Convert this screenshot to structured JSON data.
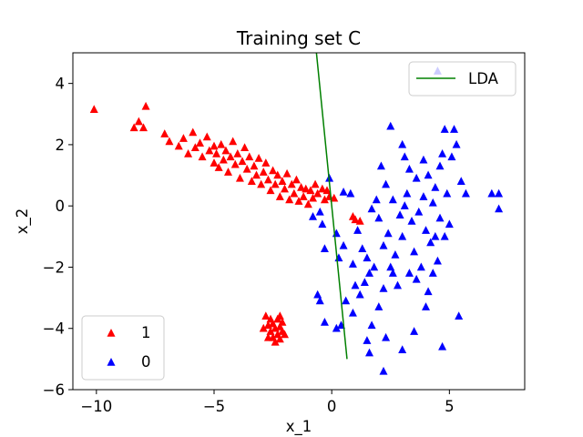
{
  "chart_data": {
    "type": "scatter",
    "title": "Training set C",
    "xlabel": "x_1",
    "ylabel": "x_2",
    "xlim": [
      -11,
      8.2
    ],
    "ylim": [
      -6,
      5
    ],
    "xticks": [
      -10,
      -5,
      0,
      5
    ],
    "yticks": [
      -6,
      -4,
      -2,
      0,
      2,
      4
    ],
    "grid": false,
    "colors": {
      "class1": "#ff0000",
      "class0": "#0000ff",
      "lda": "#008000"
    },
    "lda_line": {
      "name": "LDA",
      "x": [
        -0.65,
        0.65
      ],
      "y": [
        5.0,
        -5.0
      ],
      "legend": "upper-right"
    },
    "legend_markers": {
      "location": "lower-left",
      "entries": [
        "1",
        "0"
      ]
    },
    "series": [
      {
        "name": "1",
        "color": "#ff0000",
        "points": [
          [
            -10.1,
            3.15
          ],
          [
            -7.9,
            3.25
          ],
          [
            -8.2,
            2.75
          ],
          [
            -8.4,
            2.55
          ],
          [
            -8.0,
            2.55
          ],
          [
            -7.1,
            2.35
          ],
          [
            -6.9,
            2.1
          ],
          [
            -6.5,
            1.95
          ],
          [
            -6.3,
            2.2
          ],
          [
            -6.1,
            1.7
          ],
          [
            -5.9,
            2.4
          ],
          [
            -5.8,
            1.9
          ],
          [
            -5.6,
            2.05
          ],
          [
            -5.5,
            1.6
          ],
          [
            -5.3,
            2.25
          ],
          [
            -5.2,
            1.8
          ],
          [
            -5.0,
            1.4
          ],
          [
            -5.0,
            1.95
          ],
          [
            -4.9,
            1.7
          ],
          [
            -4.8,
            1.25
          ],
          [
            -4.7,
            2.0
          ],
          [
            -4.6,
            1.5
          ],
          [
            -4.5,
            1.8
          ],
          [
            -4.4,
            1.1
          ],
          [
            -4.3,
            1.6
          ],
          [
            -4.2,
            2.1
          ],
          [
            -4.1,
            1.35
          ],
          [
            -4.0,
            1.7
          ],
          [
            -3.9,
            0.9
          ],
          [
            -3.8,
            1.45
          ],
          [
            -3.7,
            1.9
          ],
          [
            -3.6,
            1.2
          ],
          [
            -3.5,
            1.6
          ],
          [
            -3.4,
            0.8
          ],
          [
            -3.3,
            1.3
          ],
          [
            -3.2,
            1.0
          ],
          [
            -3.1,
            1.55
          ],
          [
            -3.0,
            0.7
          ],
          [
            -2.9,
            1.1
          ],
          [
            -2.8,
            1.4
          ],
          [
            -2.7,
            0.85
          ],
          [
            -2.6,
            0.5
          ],
          [
            -2.5,
            1.15
          ],
          [
            -2.4,
            0.7
          ],
          [
            -2.3,
            1.0
          ],
          [
            -2.2,
            0.3
          ],
          [
            -2.1,
            0.8
          ],
          [
            -2.0,
            0.55
          ],
          [
            -1.9,
            1.05
          ],
          [
            -1.8,
            0.2
          ],
          [
            -1.7,
            0.7
          ],
          [
            -1.6,
            0.4
          ],
          [
            -1.5,
            0.85
          ],
          [
            -1.4,
            0.15
          ],
          [
            -1.3,
            0.6
          ],
          [
            -1.2,
            0.3
          ],
          [
            -1.1,
            0.55
          ],
          [
            -1.0,
            0.05
          ],
          [
            -0.9,
            0.5
          ],
          [
            -0.8,
            0.25
          ],
          [
            -0.7,
            0.7
          ],
          [
            -0.6,
            0.4
          ],
          [
            -0.4,
            0.55
          ],
          [
            -0.3,
            0.2
          ],
          [
            -0.2,
            0.5
          ],
          [
            -0.1,
            0.3
          ],
          [
            0.1,
            0.25
          ],
          [
            1.0,
            -0.45
          ],
          [
            1.2,
            -0.5
          ],
          [
            0.9,
            -0.35
          ],
          [
            -2.8,
            -3.6
          ],
          [
            -2.7,
            -3.9
          ],
          [
            -2.6,
            -4.1
          ],
          [
            -2.6,
            -3.7
          ],
          [
            -2.5,
            -4.3
          ],
          [
            -2.5,
            -3.85
          ],
          [
            -2.4,
            -4.0
          ],
          [
            -2.3,
            -3.7
          ],
          [
            -2.3,
            -4.2
          ],
          [
            -2.2,
            -3.95
          ],
          [
            -2.2,
            -4.35
          ],
          [
            -2.1,
            -3.8
          ],
          [
            -2.1,
            -4.1
          ],
          [
            -2.0,
            -4.2
          ],
          [
            -2.7,
            -4.3
          ],
          [
            -2.4,
            -4.45
          ],
          [
            -2.9,
            -4.0
          ],
          [
            -2.2,
            -3.6
          ]
        ]
      },
      {
        "name": "0",
        "color": "#0000ff",
        "points": [
          [
            -0.1,
            0.9
          ],
          [
            0.5,
            0.45
          ],
          [
            0.8,
            0.4
          ],
          [
            -0.8,
            -0.35
          ],
          [
            -0.5,
            -0.2
          ],
          [
            -0.4,
            -0.6
          ],
          [
            0.2,
            -0.9
          ],
          [
            0.5,
            -1.3
          ],
          [
            -0.3,
            -1.4
          ],
          [
            0.3,
            -1.7
          ],
          [
            0.9,
            -1.9
          ],
          [
            1.1,
            -0.8
          ],
          [
            1.3,
            -1.4
          ],
          [
            1.5,
            -1.7
          ],
          [
            1.6,
            -2.2
          ],
          [
            1.8,
            -2.0
          ],
          [
            1.4,
            -2.5
          ],
          [
            1.2,
            -2.9
          ],
          [
            1.0,
            -2.6
          ],
          [
            0.6,
            -3.1
          ],
          [
            0.9,
            -3.5
          ],
          [
            0.4,
            -3.9
          ],
          [
            -0.5,
            -3.1
          ],
          [
            -0.6,
            -2.9
          ],
          [
            -0.3,
            -3.8
          ],
          [
            0.2,
            -4.0
          ],
          [
            1.7,
            -3.9
          ],
          [
            2.0,
            -3.3
          ],
          [
            2.2,
            -2.7
          ],
          [
            2.6,
            -2.2
          ],
          [
            2.3,
            -4.3
          ],
          [
            1.5,
            -4.4
          ],
          [
            1.6,
            -4.8
          ],
          [
            2.2,
            -5.4
          ],
          [
            3.0,
            -4.7
          ],
          [
            3.5,
            -4.1
          ],
          [
            4.0,
            -3.3
          ],
          [
            4.3,
            -2.2
          ],
          [
            4.7,
            -4.6
          ],
          [
            5.4,
            -3.6
          ],
          [
            2.5,
            2.6
          ],
          [
            3.1,
            1.6
          ],
          [
            3.3,
            1.2
          ],
          [
            3.6,
            0.9
          ],
          [
            3.9,
            1.5
          ],
          [
            4.1,
            1.0
          ],
          [
            4.4,
            0.6
          ],
          [
            4.6,
            1.3
          ],
          [
            4.9,
            0.4
          ],
          [
            5.1,
            1.6
          ],
          [
            5.3,
            2.0
          ],
          [
            4.8,
            2.5
          ],
          [
            5.5,
            0.8
          ],
          [
            4.7,
            1.7
          ],
          [
            5.7,
            0.4
          ],
          [
            2.1,
            1.3
          ],
          [
            2.3,
            0.7
          ],
          [
            1.9,
            0.2
          ],
          [
            2.6,
            0.2
          ],
          [
            2.9,
            -0.3
          ],
          [
            3.2,
            0.4
          ],
          [
            3.4,
            -0.5
          ],
          [
            3.7,
            -0.2
          ],
          [
            4.0,
            -0.8
          ],
          [
            4.3,
            0.1
          ],
          [
            4.6,
            -0.4
          ],
          [
            4.2,
            -1.2
          ],
          [
            3.5,
            -1.5
          ],
          [
            3.0,
            -1.0
          ],
          [
            2.7,
            -1.6
          ],
          [
            2.4,
            -0.9
          ],
          [
            2.0,
            -0.4
          ],
          [
            1.7,
            -0.1
          ],
          [
            2.8,
            -2.6
          ],
          [
            3.6,
            -2.4
          ],
          [
            4.5,
            -1.8
          ],
          [
            4.8,
            -1.0
          ],
          [
            5.0,
            -0.6
          ],
          [
            3.8,
            -2.0
          ],
          [
            4.1,
            -2.8
          ],
          [
            6.8,
            0.4
          ],
          [
            7.1,
            0.4
          ],
          [
            7.1,
            -0.1
          ],
          [
            3.1,
            0.0
          ],
          [
            2.2,
            -1.3
          ],
          [
            3.9,
            0.3
          ],
          [
            2.5,
            -2.0
          ],
          [
            4.4,
            -1.0
          ],
          [
            3.3,
            -2.2
          ],
          [
            5.2,
            2.5
          ],
          [
            3.0,
            2.0
          ],
          [
            4.5,
            4.4
          ]
        ]
      }
    ]
  }
}
